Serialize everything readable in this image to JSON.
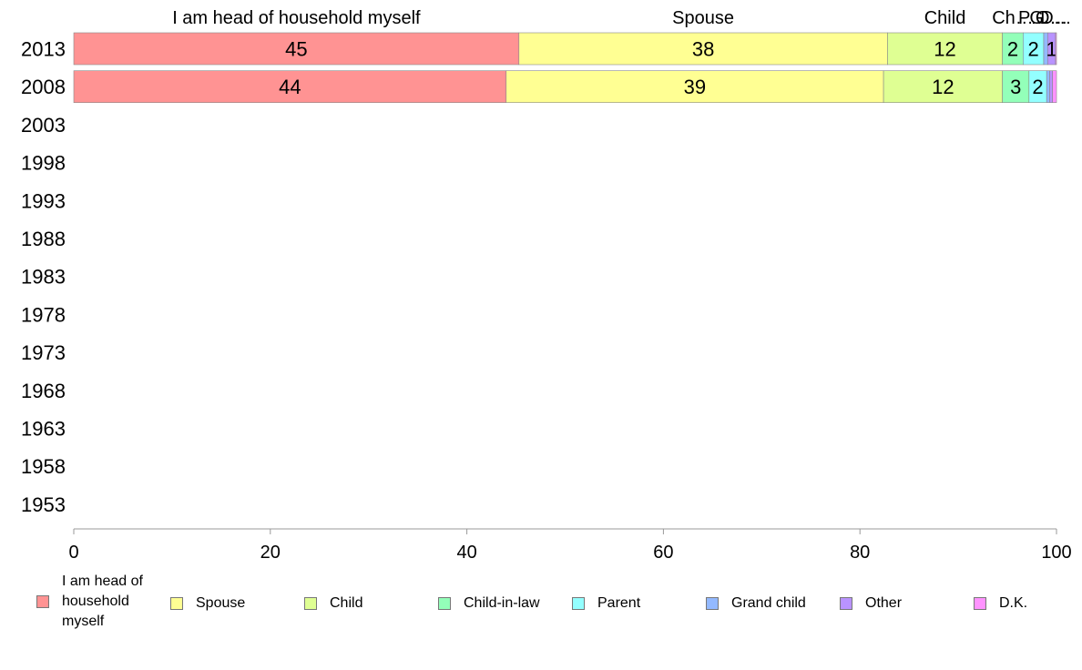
{
  "chart_data": {
    "type": "bar",
    "orientation": "horizontal",
    "stacked": true,
    "categories": [
      "2013",
      "2008",
      "2003",
      "1998",
      "1993",
      "1988",
      "1983",
      "1978",
      "1973",
      "1968",
      "1963",
      "1958",
      "1953"
    ],
    "xlim": [
      0,
      100
    ],
    "xticks": [
      "0",
      "20",
      "40",
      "60",
      "80",
      "100"
    ],
    "grid": false,
    "legend_position": "bottom",
    "series": [
      {
        "name": "I am head of household myself",
        "color": "#FF9393",
        "values": [
          45.3,
          44.0,
          null,
          null,
          null,
          null,
          null,
          null,
          null,
          null,
          null,
          null,
          null
        ],
        "labels": [
          "45",
          "44"
        ]
      },
      {
        "name": "Spouse",
        "color": "#FFFF93",
        "values": [
          37.5,
          38.4,
          null,
          null,
          null,
          null,
          null,
          null,
          null,
          null,
          null,
          null,
          null
        ],
        "labels": [
          "38",
          "39"
        ]
      },
      {
        "name": "Child",
        "color": "#DFFF93",
        "values": [
          11.7,
          12.1,
          null,
          null,
          null,
          null,
          null,
          null,
          null,
          null,
          null,
          null,
          null
        ],
        "labels": [
          "12",
          "12"
        ]
      },
      {
        "name": "Child-in-law",
        "color": "#93FFB9",
        "values": [
          2.1,
          2.7,
          null,
          null,
          null,
          null,
          null,
          null,
          null,
          null,
          null,
          null,
          null
        ],
        "labels": [
          "2",
          "3"
        ]
      },
      {
        "name": "Parent",
        "color": "#93FFFF",
        "values": [
          2.1,
          1.8,
          null,
          null,
          null,
          null,
          null,
          null,
          null,
          null,
          null,
          null,
          null
        ],
        "labels": [
          "2",
          "2"
        ]
      },
      {
        "name": "Grand child",
        "color": "#93B9FF",
        "values": [
          0.4,
          0.3,
          null,
          null,
          null,
          null,
          null,
          null,
          null,
          null,
          null,
          null,
          null
        ],
        "labels": [
          "",
          ""
        ]
      },
      {
        "name": "Other",
        "color": "#B993FF",
        "values": [
          0.8,
          0.3,
          null,
          null,
          null,
          null,
          null,
          null,
          null,
          null,
          null,
          null,
          null
        ],
        "labels": [
          "1",
          ""
        ]
      },
      {
        "name": "D.K.",
        "color": "#FF93FF",
        "values": [
          0.1,
          0.4,
          null,
          null,
          null,
          null,
          null,
          null,
          null,
          null,
          null,
          null,
          null
        ],
        "labels": [
          "",
          ""
        ]
      }
    ],
    "top_labels": [
      "I am head of household myself",
      "Spouse",
      "Child",
      "Ch…",
      "P…",
      "G…",
      "O…",
      "D…"
    ]
  },
  "legend": {
    "items": [
      {
        "label": "I am head of household myself",
        "color": "#FF9393"
      },
      {
        "label": "Spouse",
        "color": "#FFFF93"
      },
      {
        "label": "Child",
        "color": "#DFFF93"
      },
      {
        "label": "Child-in-law",
        "color": "#93FFB9"
      },
      {
        "label": "Parent",
        "color": "#93FFFF"
      },
      {
        "label": "Grand child",
        "color": "#93B9FF"
      },
      {
        "label": "Other",
        "color": "#B993FF"
      },
      {
        "label": "D.K.",
        "color": "#FF93FF"
      }
    ]
  }
}
